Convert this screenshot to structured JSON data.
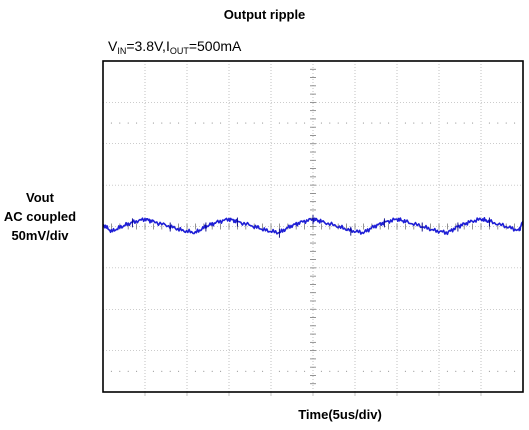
{
  "chart_data": {
    "type": "line",
    "title": "Output ripple",
    "condition": {
      "v": "V",
      "v_sub": "IN",
      "v_value": "=3.8V,",
      "i": "I",
      "i_sub": "OUT",
      "i_value": "=500mA"
    },
    "ylabel_lines": [
      "Vout",
      "AC coupled",
      "50mV/div"
    ],
    "xlabel": "Time(5us/div)",
    "grid": true,
    "x_divisions": 10,
    "y_divisions": 8,
    "xlim_div": [
      0,
      10
    ],
    "ylim_div": [
      -4,
      4
    ],
    "trace_color": "#1f1fd6",
    "series": [
      {
        "x_div": [
          0,
          0.2,
          0.45,
          0.7,
          1.0,
          1.2,
          1.6,
          1.9,
          2.2,
          2.45,
          2.7,
          3.0,
          3.2,
          3.6,
          3.9,
          4.2,
          4.45,
          4.7,
          5.0,
          5.2,
          5.6,
          5.9,
          6.2,
          6.45,
          6.7,
          7.0,
          7.2,
          7.6,
          7.9,
          8.2,
          8.45,
          8.7,
          9.0,
          9.2,
          9.6,
          9.9,
          10.0
        ],
        "y_div": [
          0.05,
          -0.12,
          0.0,
          0.1,
          0.18,
          0.12,
          0.0,
          -0.1,
          -0.15,
          0.0,
          0.1,
          0.18,
          0.12,
          0.0,
          -0.1,
          -0.15,
          0.0,
          0.1,
          0.18,
          0.12,
          0.0,
          -0.1,
          -0.15,
          0.0,
          0.1,
          0.18,
          0.12,
          0.0,
          -0.1,
          -0.15,
          0.0,
          0.1,
          0.18,
          0.12,
          0.0,
          -0.1,
          0.12
        ]
      }
    ]
  }
}
